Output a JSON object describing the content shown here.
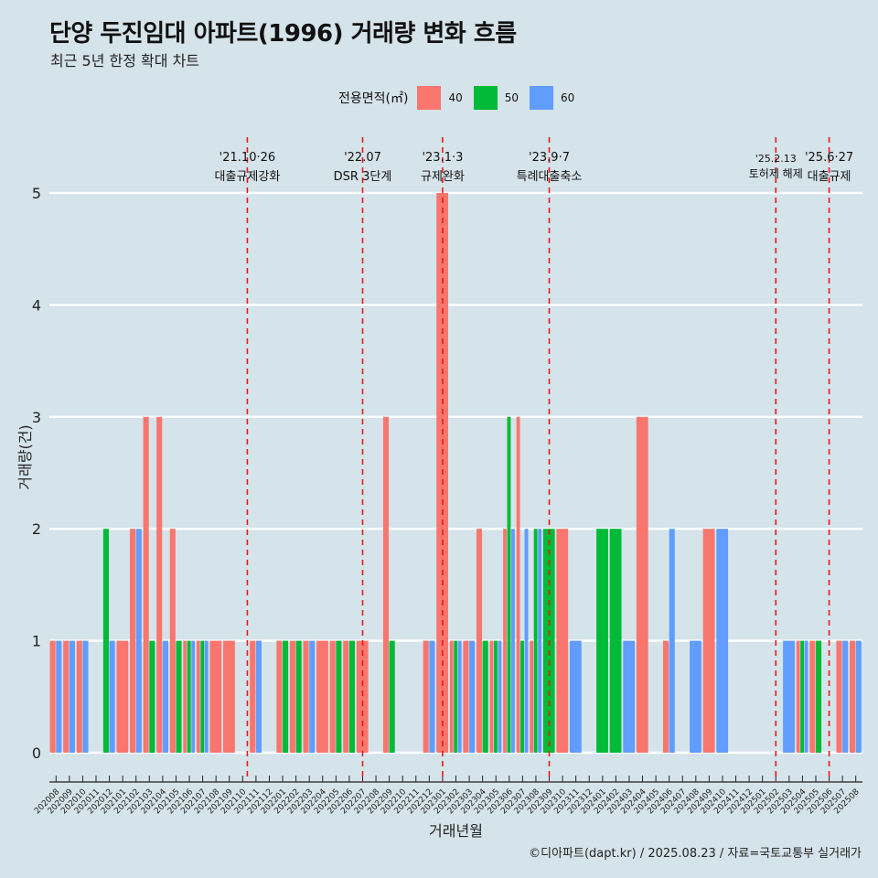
{
  "title": "단양 두진임대 아파트(1996) 거래량 변화 흐름",
  "subtitle": "최근 5년 한정 확대 차트",
  "caption": "©디아파트(dapt.kr) / 2025.08.23 / 자료=국토교통부 실거래가",
  "legend": {
    "title": "전용면적(㎡)",
    "items": [
      {
        "label": "40",
        "color": "#F8766D"
      },
      {
        "label": "50",
        "color": "#00BA38"
      },
      {
        "label": "60",
        "color": "#619CFF"
      }
    ]
  },
  "chart_data": {
    "type": "bar",
    "xlabel": "거래년월",
    "ylabel": "거래량(건)",
    "ylim": [
      0,
      5
    ],
    "yticks": [
      0,
      1,
      2,
      3,
      4,
      5
    ],
    "grid": true,
    "legend_position": "top",
    "categories": [
      "202008",
      "202009",
      "202010",
      "202011",
      "202012",
      "202101",
      "202102",
      "202103",
      "202104",
      "202105",
      "202106",
      "202107",
      "202108",
      "202109",
      "202110",
      "202111",
      "202112",
      "202201",
      "202202",
      "202203",
      "202204",
      "202205",
      "202206",
      "202207",
      "202208",
      "202209",
      "202210",
      "202211",
      "202212",
      "202301",
      "202302",
      "202303",
      "202304",
      "202305",
      "202306",
      "202307",
      "202308",
      "202309",
      "202310",
      "202311",
      "202312",
      "202401",
      "202402",
      "202403",
      "202404",
      "202405",
      "202406",
      "202407",
      "202408",
      "202409",
      "202410",
      "202411",
      "202412",
      "202501",
      "202502",
      "202503",
      "202504",
      "202505",
      "202506",
      "202507",
      "202508"
    ],
    "transactions": [
      {
        "m": "202008",
        "s": "40",
        "v": 1
      },
      {
        "m": "202008",
        "s": "60",
        "v": 1
      },
      {
        "m": "202009",
        "s": "40",
        "v": 1
      },
      {
        "m": "202009",
        "s": "60",
        "v": 1
      },
      {
        "m": "202010",
        "s": "40",
        "v": 1
      },
      {
        "m": "202010",
        "s": "60",
        "v": 1
      },
      {
        "m": "202012",
        "s": "50",
        "v": 2
      },
      {
        "m": "202012",
        "s": "60",
        "v": 1
      },
      {
        "m": "202101",
        "s": "40",
        "v": 1
      },
      {
        "m": "202102",
        "s": "40",
        "v": 2
      },
      {
        "m": "202102",
        "s": "60",
        "v": 2
      },
      {
        "m": "202103",
        "s": "40",
        "v": 3
      },
      {
        "m": "202103",
        "s": "50",
        "v": 1
      },
      {
        "m": "202104",
        "s": "40",
        "v": 3
      },
      {
        "m": "202104",
        "s": "60",
        "v": 1
      },
      {
        "m": "202105",
        "s": "40",
        "v": 2
      },
      {
        "m": "202105",
        "s": "50",
        "v": 1
      },
      {
        "m": "202106",
        "s": "40",
        "v": 1
      },
      {
        "m": "202106",
        "s": "50",
        "v": 1
      },
      {
        "m": "202106",
        "s": "60",
        "v": 1
      },
      {
        "m": "202107",
        "s": "40",
        "v": 1
      },
      {
        "m": "202107",
        "s": "50",
        "v": 1
      },
      {
        "m": "202107",
        "s": "60",
        "v": 1
      },
      {
        "m": "202108",
        "s": "40",
        "v": 1
      },
      {
        "m": "202109",
        "s": "40",
        "v": 1
      },
      {
        "m": "202111",
        "s": "40",
        "v": 1
      },
      {
        "m": "202111",
        "s": "60",
        "v": 1
      },
      {
        "m": "202201",
        "s": "40",
        "v": 1
      },
      {
        "m": "202201",
        "s": "50",
        "v": 1
      },
      {
        "m": "202202",
        "s": "40",
        "v": 1
      },
      {
        "m": "202202",
        "s": "50",
        "v": 1
      },
      {
        "m": "202203",
        "s": "40",
        "v": 1
      },
      {
        "m": "202203",
        "s": "60",
        "v": 1
      },
      {
        "m": "202204",
        "s": "40",
        "v": 1
      },
      {
        "m": "202205",
        "s": "40",
        "v": 1
      },
      {
        "m": "202205",
        "s": "50",
        "v": 1
      },
      {
        "m": "202206",
        "s": "40",
        "v": 1
      },
      {
        "m": "202206",
        "s": "50",
        "v": 1
      },
      {
        "m": "202207",
        "s": "40",
        "v": 1
      },
      {
        "m": "202209",
        "s": "40",
        "v": 3
      },
      {
        "m": "202209",
        "s": "50",
        "v": 1
      },
      {
        "m": "202212",
        "s": "40",
        "v": 1
      },
      {
        "m": "202212",
        "s": "60",
        "v": 1
      },
      {
        "m": "202301",
        "s": "40",
        "v": 5
      },
      {
        "m": "202302",
        "s": "40",
        "v": 1
      },
      {
        "m": "202302",
        "s": "50",
        "v": 1
      },
      {
        "m": "202302",
        "s": "60",
        "v": 1
      },
      {
        "m": "202303",
        "s": "40",
        "v": 1
      },
      {
        "m": "202303",
        "s": "60",
        "v": 1
      },
      {
        "m": "202304",
        "s": "40",
        "v": 2
      },
      {
        "m": "202304",
        "s": "50",
        "v": 1
      },
      {
        "m": "202305",
        "s": "40",
        "v": 1
      },
      {
        "m": "202305",
        "s": "50",
        "v": 1
      },
      {
        "m": "202305",
        "s": "60",
        "v": 1
      },
      {
        "m": "202306",
        "s": "40",
        "v": 2
      },
      {
        "m": "202306",
        "s": "50",
        "v": 3
      },
      {
        "m": "202306",
        "s": "60",
        "v": 2
      },
      {
        "m": "202307",
        "s": "40",
        "v": 3
      },
      {
        "m": "202307",
        "s": "50",
        "v": 1
      },
      {
        "m": "202307",
        "s": "60",
        "v": 2
      },
      {
        "m": "202308",
        "s": "40",
        "v": 1
      },
      {
        "m": "202308",
        "s": "50",
        "v": 2
      },
      {
        "m": "202308",
        "s": "60",
        "v": 2
      },
      {
        "m": "202309",
        "s": "50",
        "v": 2
      },
      {
        "m": "202310",
        "s": "40",
        "v": 2
      },
      {
        "m": "202311",
        "s": "60",
        "v": 1
      },
      {
        "m": "202401",
        "s": "50",
        "v": 2
      },
      {
        "m": "202402",
        "s": "50",
        "v": 2
      },
      {
        "m": "202403",
        "s": "60",
        "v": 1
      },
      {
        "m": "202404",
        "s": "40",
        "v": 3
      },
      {
        "m": "202406",
        "s": "40",
        "v": 1
      },
      {
        "m": "202406",
        "s": "60",
        "v": 2
      },
      {
        "m": "202408",
        "s": "60",
        "v": 1
      },
      {
        "m": "202409",
        "s": "40",
        "v": 2
      },
      {
        "m": "202410",
        "s": "60",
        "v": 2
      },
      {
        "m": "202503",
        "s": "60",
        "v": 1
      },
      {
        "m": "202504",
        "s": "40",
        "v": 1
      },
      {
        "m": "202504",
        "s": "50",
        "v": 1
      },
      {
        "m": "202504",
        "s": "60",
        "v": 1
      },
      {
        "m": "202505",
        "s": "40",
        "v": 1
      },
      {
        "m": "202505",
        "s": "50",
        "v": 1
      },
      {
        "m": "202507",
        "s": "40",
        "v": 1
      },
      {
        "m": "202507",
        "s": "60",
        "v": 1
      },
      {
        "m": "202508",
        "s": "40",
        "v": 1
      },
      {
        "m": "202508",
        "s": "60",
        "v": 1
      }
    ],
    "annotations": [
      {
        "at": "202110",
        "date": "'21.10·26",
        "text": "대출규제강화"
      },
      {
        "at": "202207",
        "date": "'22.07",
        "text": "DSR 3단계"
      },
      {
        "at": "202301",
        "date": "'23.1·3",
        "text": "규제완화"
      },
      {
        "at": "202309",
        "date": "'23.9·7",
        "text": "특례대출축소"
      },
      {
        "at": "202502",
        "date": "'25.2.13",
        "text": "토허제 해제"
      },
      {
        "at": "202506",
        "date": "'25.6·27",
        "text": "대출규제"
      }
    ]
  }
}
